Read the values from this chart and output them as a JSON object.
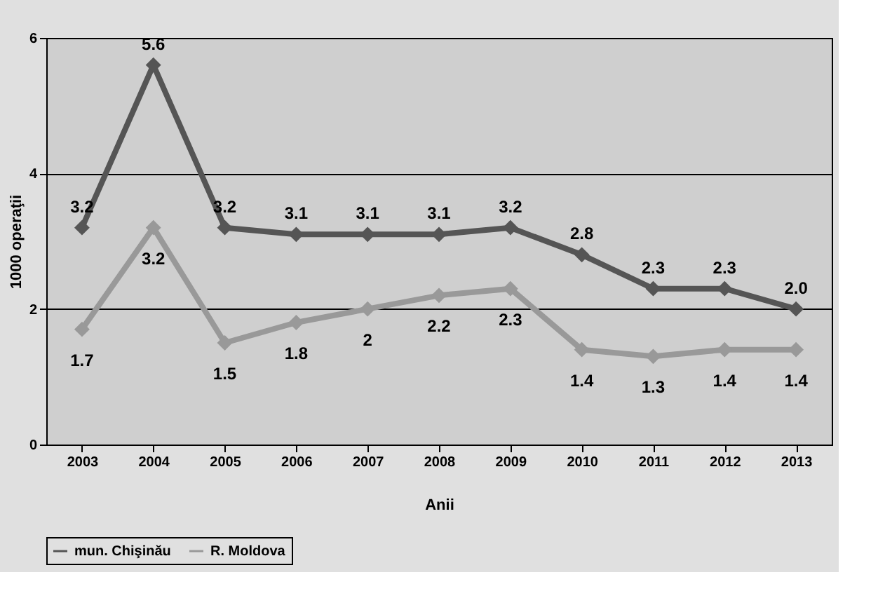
{
  "chart_data": {
    "type": "line",
    "xlabel": "Anii",
    "ylabel": "1000 operaţii",
    "categories": [
      "2003",
      "2004",
      "2005",
      "2006",
      "2007",
      "2008",
      "2009",
      "2010",
      "2011",
      "2012",
      "2013"
    ],
    "series": [
      {
        "name": "mun. Chişinău",
        "color": "#555555",
        "values": [
          3.2,
          5.6,
          3.2,
          3.1,
          3.1,
          3.1,
          3.2,
          2.8,
          2.3,
          2.3,
          2.0
        ],
        "value_labels": [
          "3.2",
          "5.6",
          "3.2",
          "3.1",
          "3.1",
          "3.1",
          "3.2",
          "2.8",
          "2.3",
          "2.3",
          "2.0"
        ]
      },
      {
        "name": "R. Moldova",
        "color": "#999999",
        "values": [
          1.7,
          3.2,
          1.5,
          1.8,
          2,
          2.2,
          2.3,
          1.4,
          1.3,
          1.4,
          1.4
        ],
        "value_labels": [
          "1.7",
          "3.2",
          "1.5",
          "1.8",
          "2",
          "2.2",
          "2.3",
          "1.4",
          "1.3",
          "1.4",
          "1.4"
        ]
      }
    ],
    "ylim": [
      0,
      6
    ],
    "yticks": [
      0,
      2,
      4,
      6
    ],
    "grid": "y",
    "legend": "bottom",
    "marker": "diamond",
    "line_style": "solid"
  }
}
